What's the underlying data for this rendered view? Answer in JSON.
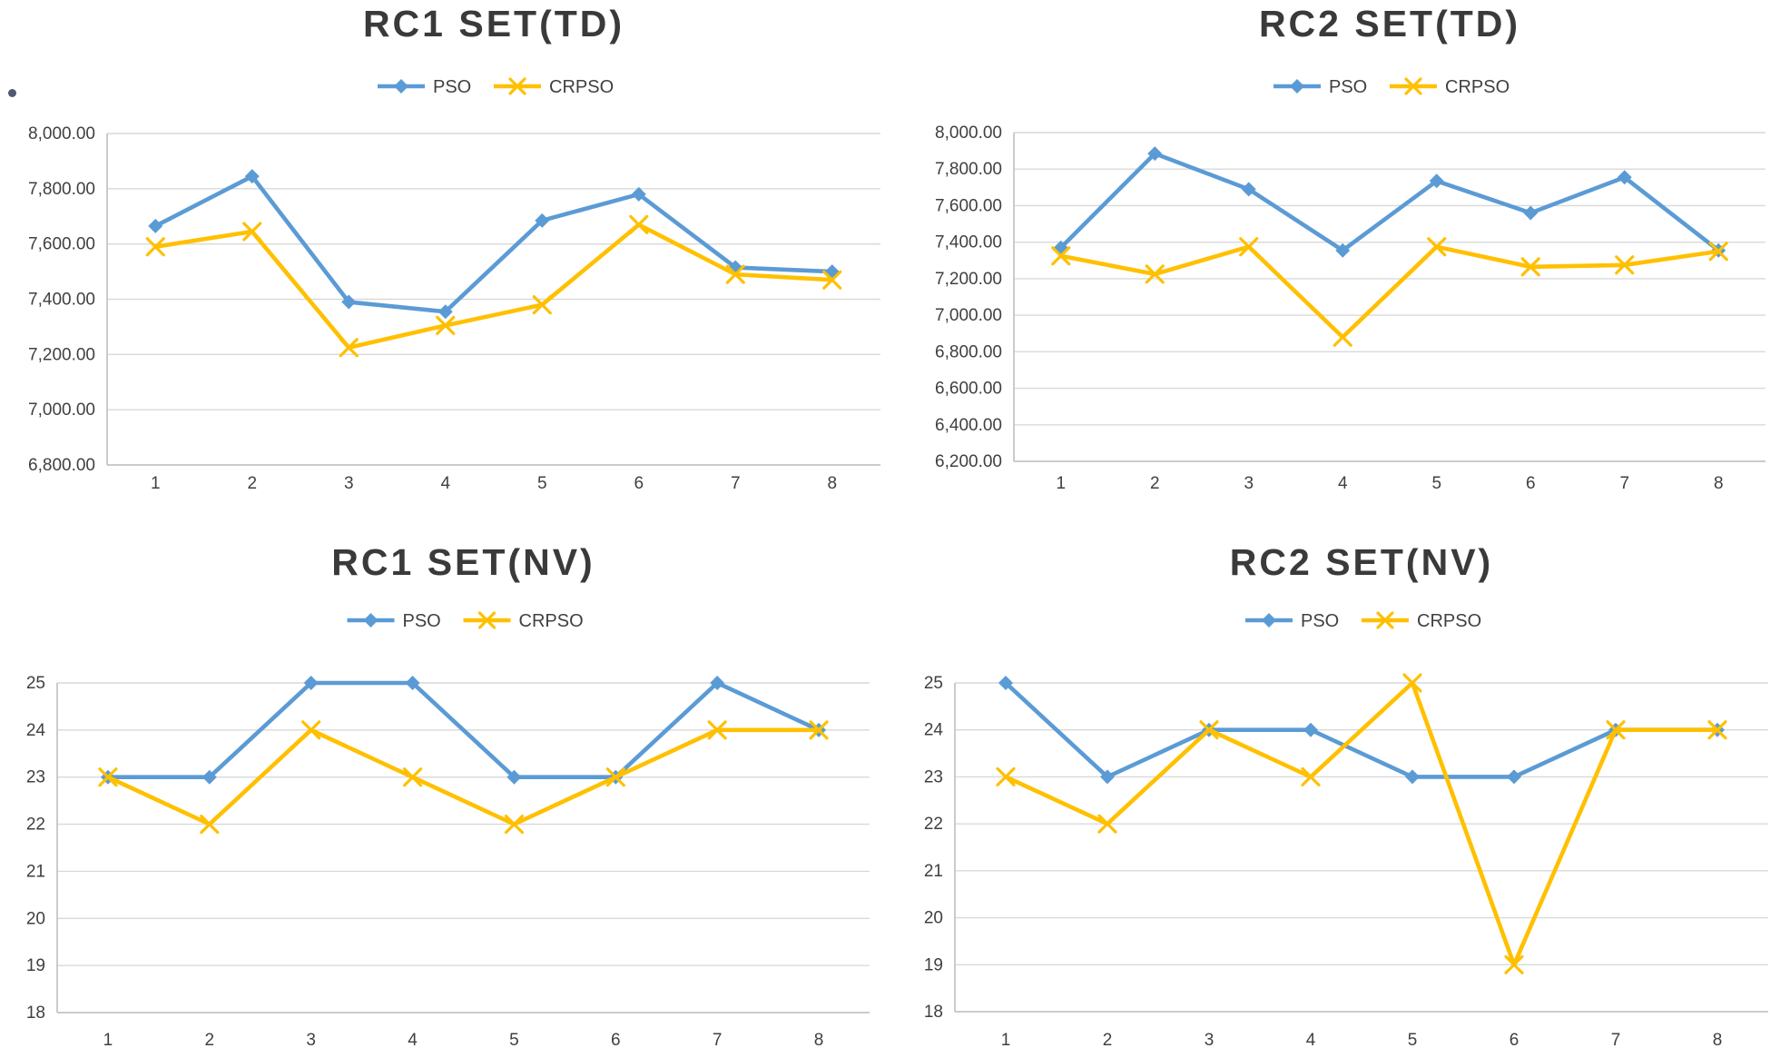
{
  "figure": {
    "background": "#ffffff",
    "legend_labels": [
      "PSO",
      "CRPSO"
    ]
  },
  "colors": {
    "pso": "#5B9BD5",
    "crpso": "#FFC000",
    "gridline": "#D9D9D9",
    "axis": "#C0C0C0",
    "tick_text": "#404040",
    "title_text": "#3A3A3A"
  },
  "chart_data": [
    {
      "id": "rc1-td",
      "type": "line",
      "title": "RC1 SET(TD)",
      "xlabel": "",
      "ylabel": "",
      "categories": [
        "1",
        "2",
        "3",
        "4",
        "5",
        "6",
        "7",
        "8"
      ],
      "ylim": [
        6800,
        8000
      ],
      "ytick_step": 200,
      "grid": true,
      "legend_position": "top",
      "yticks": [
        {
          "v": 8000,
          "label": "8,000.00"
        },
        {
          "v": 7800,
          "label": "7,800.00"
        },
        {
          "v": 7600,
          "label": "7,600.00"
        },
        {
          "v": 7400,
          "label": "7,400.00"
        },
        {
          "v": 7200,
          "label": "7,200.00"
        },
        {
          "v": 7000,
          "label": "7,000.00"
        },
        {
          "v": 6800,
          "label": "6,800.00"
        }
      ],
      "series": [
        {
          "name": "PSO",
          "color": "#5B9BD5",
          "marker": "diamond",
          "values": [
            7665,
            7845,
            7390,
            7355,
            7685,
            7780,
            7515,
            7500
          ]
        },
        {
          "name": "CRPSO",
          "color": "#FFC000",
          "marker": "x",
          "values": [
            7590,
            7645,
            7225,
            7305,
            7380,
            7670,
            7490,
            7470
          ]
        }
      ]
    },
    {
      "id": "rc2-td",
      "type": "line",
      "title": "RC2 SET(TD)",
      "xlabel": "",
      "ylabel": "",
      "categories": [
        "1",
        "2",
        "3",
        "4",
        "5",
        "6",
        "7",
        "8"
      ],
      "ylim": [
        6200,
        8000
      ],
      "ytick_step": 200,
      "grid": true,
      "legend_position": "top",
      "yticks": [
        {
          "v": 8000,
          "label": "8,000.00"
        },
        {
          "v": 7800,
          "label": "7,800.00"
        },
        {
          "v": 7600,
          "label": "7,600.00"
        },
        {
          "v": 7400,
          "label": "7,400.00"
        },
        {
          "v": 7200,
          "label": "7,200.00"
        },
        {
          "v": 7000,
          "label": "7,000.00"
        },
        {
          "v": 6800,
          "label": "6,800.00"
        },
        {
          "v": 6600,
          "label": "6,600.00"
        },
        {
          "v": 6400,
          "label": "6,400.00"
        },
        {
          "v": 6200,
          "label": "6,200.00"
        }
      ],
      "series": [
        {
          "name": "PSO",
          "color": "#5B9BD5",
          "marker": "diamond",
          "values": [
            7370,
            7885,
            7690,
            7355,
            7735,
            7560,
            7755,
            7355
          ]
        },
        {
          "name": "CRPSO",
          "color": "#FFC000",
          "marker": "x",
          "values": [
            7325,
            7225,
            7375,
            6880,
            7375,
            7265,
            7275,
            7350
          ]
        }
      ]
    },
    {
      "id": "rc1-nv",
      "type": "line",
      "title": "RC1 SET(NV)",
      "xlabel": "",
      "ylabel": "",
      "categories": [
        "1",
        "2",
        "3",
        "4",
        "5",
        "6",
        "7",
        "8"
      ],
      "ylim": [
        18,
        25
      ],
      "ytick_step": 1,
      "grid": true,
      "legend_position": "top",
      "yticks": [
        {
          "v": 25,
          "label": "25"
        },
        {
          "v": 24,
          "label": "24"
        },
        {
          "v": 23,
          "label": "23"
        },
        {
          "v": 22,
          "label": "22"
        },
        {
          "v": 21,
          "label": "21"
        },
        {
          "v": 20,
          "label": "20"
        },
        {
          "v": 19,
          "label": "19"
        },
        {
          "v": 18,
          "label": "18"
        }
      ],
      "series": [
        {
          "name": "PSO",
          "color": "#5B9BD5",
          "marker": "diamond",
          "values": [
            23,
            23,
            25,
            25,
            23,
            23,
            25,
            24
          ]
        },
        {
          "name": "CRPSO",
          "color": "#FFC000",
          "marker": "x",
          "values": [
            23,
            22,
            24,
            23,
            22,
            23,
            24,
            24
          ]
        }
      ]
    },
    {
      "id": "rc2-nv",
      "type": "line",
      "title": "RC2 SET(NV)",
      "xlabel": "",
      "ylabel": "",
      "categories": [
        "1",
        "2",
        "3",
        "4",
        "5",
        "6",
        "7",
        "8"
      ],
      "ylim": [
        18,
        25
      ],
      "ytick_step": 1,
      "grid": true,
      "legend_position": "top",
      "yticks": [
        {
          "v": 25,
          "label": "25"
        },
        {
          "v": 24,
          "label": "24"
        },
        {
          "v": 23,
          "label": "23"
        },
        {
          "v": 22,
          "label": "22"
        },
        {
          "v": 21,
          "label": "21"
        },
        {
          "v": 20,
          "label": "20"
        },
        {
          "v": 19,
          "label": "19"
        },
        {
          "v": 18,
          "label": "18"
        }
      ],
      "series": [
        {
          "name": "PSO",
          "color": "#5B9BD5",
          "marker": "diamond",
          "values": [
            25,
            23,
            24,
            24,
            23,
            23,
            24,
            24
          ]
        },
        {
          "name": "CRPSO",
          "color": "#FFC000",
          "marker": "x",
          "values": [
            23,
            22,
            24,
            23,
            25,
            19,
            24,
            24
          ]
        }
      ]
    }
  ]
}
